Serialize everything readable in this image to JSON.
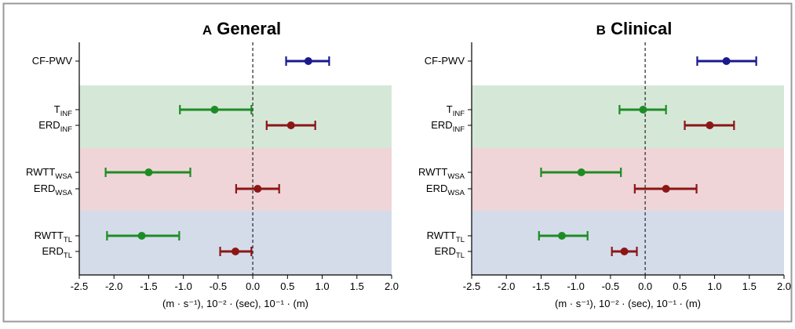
{
  "colors": {
    "frame": "#999999",
    "band_inf": "#d5e8d8",
    "band_wsa": "#efd5d7",
    "band_tl": "#d4dcea",
    "navy": "#1a1a8c",
    "green": "#1e8c24",
    "darkred": "#8c1616",
    "zero_line": "#333333"
  },
  "chart_data": [
    {
      "type": "forest",
      "panel_letter": "A",
      "title": "General",
      "xlabel": "(m · s⁻¹), 10⁻² · (sec), 10⁻¹ · (m)",
      "xlim": [
        -2.5,
        2.0
      ],
      "xticks": [
        "-2.5",
        "-2.0",
        "-1.5",
        "-1.0",
        "-0.5",
        "0.0",
        "0.5",
        "1.0",
        "1.5",
        "2.0"
      ],
      "reference_line_x": 0,
      "bands": [
        {
          "group": "INF",
          "color": "green"
        },
        {
          "group": "WSA",
          "color": "red"
        },
        {
          "group": "TL",
          "color": "blue"
        }
      ],
      "rows": [
        {
          "base": "CF-PWV",
          "sub": "",
          "color": "navy",
          "estimate": 0.8,
          "ci_low": 0.48,
          "ci_high": 1.1
        },
        {
          "base": "T",
          "sub": "INF",
          "color": "green",
          "estimate": -0.55,
          "ci_low": -1.05,
          "ci_high": -0.02
        },
        {
          "base": "ERD",
          "sub": "INF",
          "color": "darkred",
          "estimate": 0.55,
          "ci_low": 0.2,
          "ci_high": 0.9
        },
        {
          "base": "RWTT",
          "sub": "WSA",
          "color": "green",
          "estimate": -1.5,
          "ci_low": -2.12,
          "ci_high": -0.9
        },
        {
          "base": "ERD",
          "sub": "WSA",
          "color": "darkred",
          "estimate": 0.07,
          "ci_low": -0.24,
          "ci_high": 0.38
        },
        {
          "base": "RWTT",
          "sub": "TL",
          "color": "green",
          "estimate": -1.6,
          "ci_low": -2.1,
          "ci_high": -1.06
        },
        {
          "base": "ERD",
          "sub": "TL",
          "color": "darkred",
          "estimate": -0.25,
          "ci_low": -0.47,
          "ci_high": -0.02
        }
      ]
    },
    {
      "type": "forest",
      "panel_letter": "B",
      "title": "Clinical",
      "xlabel": "(m · s⁻¹), 10⁻² · (sec), 10⁻¹ · (m)",
      "xlim": [
        -2.5,
        2.0
      ],
      "xticks": [
        "-2.5",
        "-2.0",
        "-1.5",
        "-1.0",
        "-0.5",
        "0.0",
        "0.5",
        "1.0",
        "1.5",
        "2.0"
      ],
      "reference_line_x": 0,
      "bands": [
        {
          "group": "INF",
          "color": "green"
        },
        {
          "group": "WSA",
          "color": "red"
        },
        {
          "group": "TL",
          "color": "blue"
        }
      ],
      "rows": [
        {
          "base": "CF-PWV",
          "sub": "",
          "color": "navy",
          "estimate": 1.17,
          "ci_low": 0.75,
          "ci_high": 1.6
        },
        {
          "base": "T",
          "sub": "INF",
          "color": "green",
          "estimate": -0.03,
          "ci_low": -0.37,
          "ci_high": 0.3
        },
        {
          "base": "ERD",
          "sub": "INF",
          "color": "darkred",
          "estimate": 0.93,
          "ci_low": 0.57,
          "ci_high": 1.28
        },
        {
          "base": "RWTT",
          "sub": "WSA",
          "color": "green",
          "estimate": -0.92,
          "ci_low": -1.5,
          "ci_high": -0.35
        },
        {
          "base": "ERD",
          "sub": "WSA",
          "color": "darkred",
          "estimate": 0.3,
          "ci_low": -0.15,
          "ci_high": 0.74
        },
        {
          "base": "RWTT",
          "sub": "TL",
          "color": "green",
          "estimate": -1.2,
          "ci_low": -1.53,
          "ci_high": -0.83
        },
        {
          "base": "ERD",
          "sub": "TL",
          "color": "darkred",
          "estimate": -0.3,
          "ci_low": -0.48,
          "ci_high": -0.12
        }
      ]
    }
  ]
}
